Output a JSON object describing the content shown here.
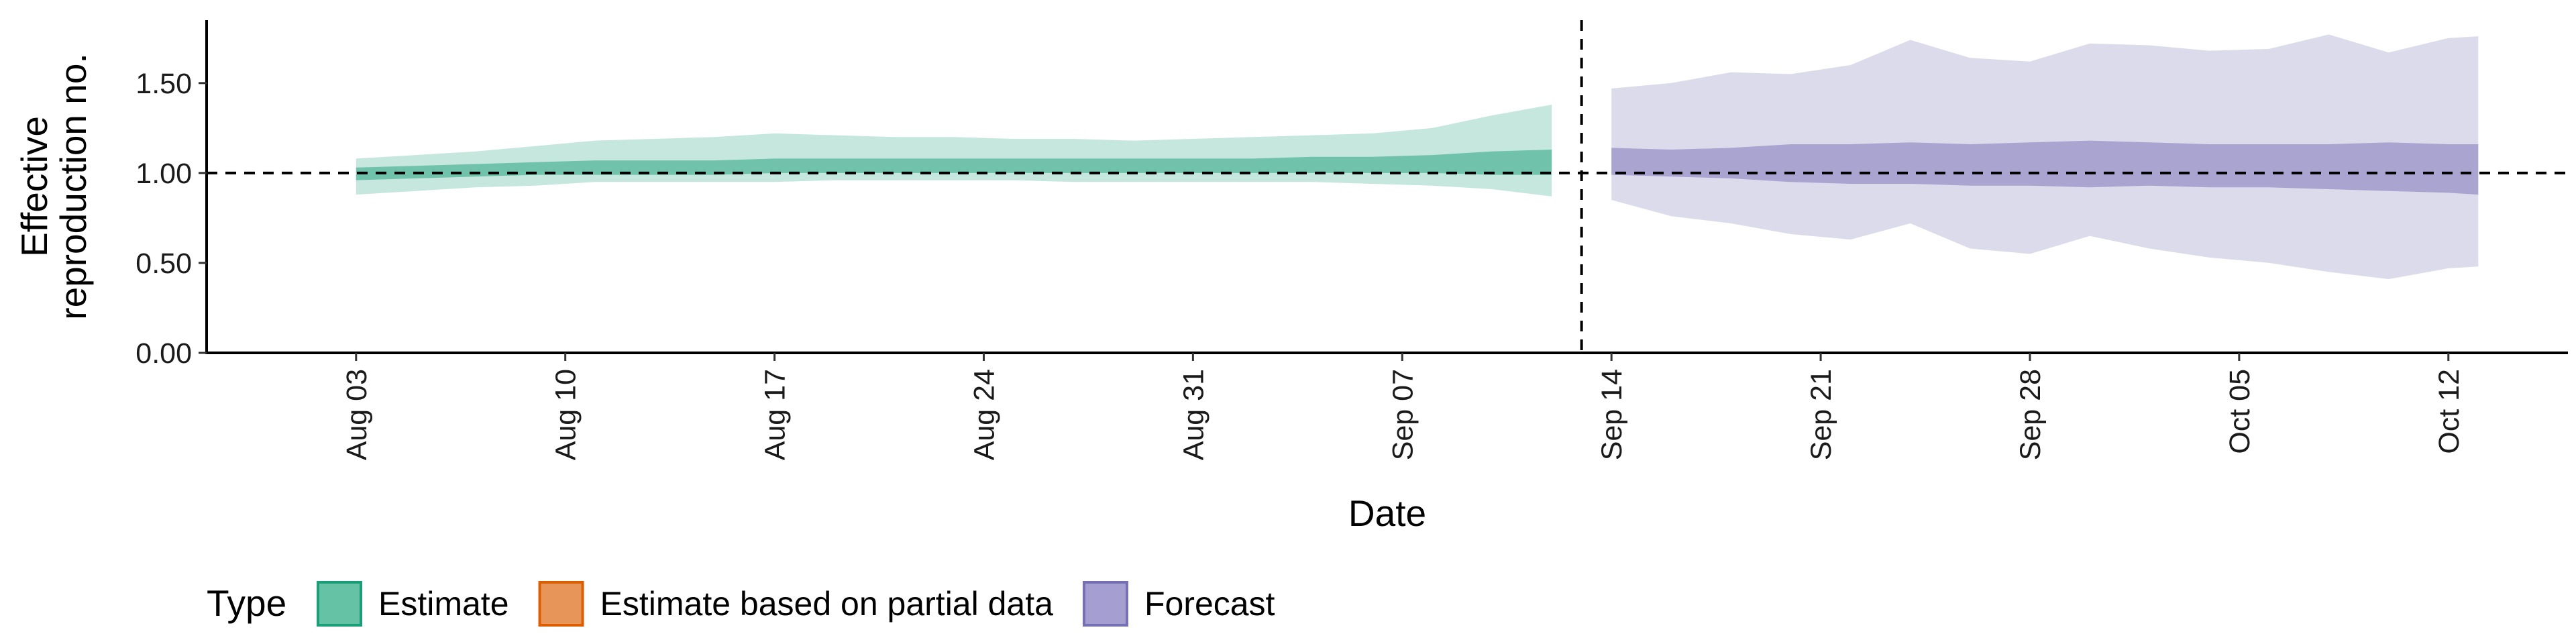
{
  "chart_data": {
    "type": "area",
    "xlabel": "Date",
    "ylabel_lines": [
      "Effective",
      "reproduction no."
    ],
    "ylim": [
      0,
      1.85
    ],
    "y_ticks": [
      {
        "value": 0.0,
        "label": "0.00"
      },
      {
        "value": 0.5,
        "label": "0.50"
      },
      {
        "value": 1.0,
        "label": "1.00"
      },
      {
        "value": 1.5,
        "label": "1.50"
      }
    ],
    "x_range": [
      "2020-07-29",
      "2020-10-16"
    ],
    "x_ticks": [
      {
        "date": "2020-08-03",
        "label": "Aug 03"
      },
      {
        "date": "2020-08-10",
        "label": "Aug 10"
      },
      {
        "date": "2020-08-17",
        "label": "Aug 17"
      },
      {
        "date": "2020-08-24",
        "label": "Aug 24"
      },
      {
        "date": "2020-08-31",
        "label": "Aug 31"
      },
      {
        "date": "2020-09-07",
        "label": "Sep 07"
      },
      {
        "date": "2020-09-14",
        "label": "Sep 14"
      },
      {
        "date": "2020-09-21",
        "label": "Sep 21"
      },
      {
        "date": "2020-09-28",
        "label": "Sep 28"
      },
      {
        "date": "2020-10-05",
        "label": "Oct 05"
      },
      {
        "date": "2020-10-12",
        "label": "Oct 12"
      }
    ],
    "reference_line_y": 1.0,
    "vertical_line_date": "2020-09-13",
    "legend": {
      "title": "Type",
      "position": "bottom",
      "items": [
        {
          "label": "Estimate",
          "fill": "#66C2A5",
          "stroke": "#1B9E77"
        },
        {
          "label": "Estimate based on partial data",
          "fill": "#E8955A",
          "stroke": "#D95F02"
        },
        {
          "label": "Forecast",
          "fill": "#A59FD1",
          "stroke": "#7570B3"
        }
      ]
    },
    "series": [
      {
        "name": "Estimate",
        "color": "#1B9E77",
        "dates": [
          "2020-08-03",
          "2020-08-05",
          "2020-08-07",
          "2020-08-09",
          "2020-08-11",
          "2020-08-13",
          "2020-08-15",
          "2020-08-17",
          "2020-08-19",
          "2020-08-21",
          "2020-08-23",
          "2020-08-25",
          "2020-08-27",
          "2020-08-29",
          "2020-08-31",
          "2020-09-02",
          "2020-09-04",
          "2020-09-06",
          "2020-09-08",
          "2020-09-10",
          "2020-09-12"
        ],
        "outer_upper": [
          1.08,
          1.1,
          1.12,
          1.15,
          1.18,
          1.19,
          1.2,
          1.22,
          1.21,
          1.2,
          1.2,
          1.19,
          1.19,
          1.18,
          1.19,
          1.2,
          1.21,
          1.22,
          1.25,
          1.32,
          1.38
        ],
        "outer_lower": [
          0.88,
          0.9,
          0.92,
          0.93,
          0.95,
          0.95,
          0.95,
          0.95,
          0.96,
          0.96,
          0.96,
          0.96,
          0.95,
          0.95,
          0.95,
          0.95,
          0.95,
          0.94,
          0.93,
          0.91,
          0.87
        ],
        "inner_upper": [
          1.03,
          1.04,
          1.05,
          1.06,
          1.07,
          1.07,
          1.07,
          1.08,
          1.08,
          1.08,
          1.08,
          1.08,
          1.08,
          1.08,
          1.08,
          1.08,
          1.09,
          1.09,
          1.1,
          1.12,
          1.13
        ],
        "inner_lower": [
          0.96,
          0.97,
          0.98,
          0.99,
          0.99,
          0.99,
          0.99,
          1.0,
          1.0,
          1.0,
          1.0,
          1.0,
          1.0,
          1.0,
          1.0,
          1.0,
          1.0,
          1.0,
          1.0,
          0.99,
          0.99
        ]
      },
      {
        "name": "Forecast",
        "color": "#7570B3",
        "dates": [
          "2020-09-14",
          "2020-09-16",
          "2020-09-18",
          "2020-09-20",
          "2020-09-22",
          "2020-09-24",
          "2020-09-26",
          "2020-09-28",
          "2020-09-30",
          "2020-10-02",
          "2020-10-04",
          "2020-10-06",
          "2020-10-08",
          "2020-10-10",
          "2020-10-12",
          "2020-10-13"
        ],
        "outer_upper": [
          1.47,
          1.5,
          1.56,
          1.55,
          1.6,
          1.74,
          1.64,
          1.62,
          1.72,
          1.71,
          1.68,
          1.69,
          1.77,
          1.67,
          1.75,
          1.76
        ],
        "outer_lower": [
          0.85,
          0.76,
          0.72,
          0.66,
          0.63,
          0.72,
          0.58,
          0.55,
          0.65,
          0.58,
          0.53,
          0.5,
          0.45,
          0.41,
          0.47,
          0.48
        ],
        "inner_upper": [
          1.14,
          1.13,
          1.14,
          1.16,
          1.16,
          1.17,
          1.16,
          1.17,
          1.18,
          1.17,
          1.16,
          1.16,
          1.16,
          1.17,
          1.16,
          1.16
        ],
        "inner_lower": [
          0.99,
          0.98,
          0.97,
          0.95,
          0.94,
          0.94,
          0.93,
          0.93,
          0.92,
          0.93,
          0.92,
          0.92,
          0.91,
          0.9,
          0.89,
          0.88
        ]
      }
    ]
  }
}
